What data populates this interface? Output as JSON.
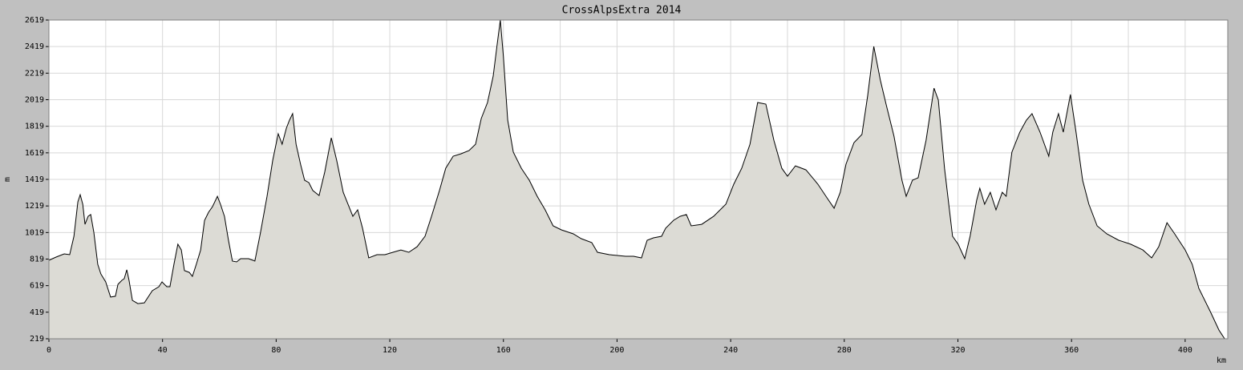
{
  "chart_data": {
    "type": "area",
    "title": "CrossAlpsExtra 2014",
    "y_label": "m",
    "x_label": "km",
    "fill_color": "#dcdbd5",
    "line_color": "#000000",
    "grid": true,
    "xlim": [
      0,
      415
    ],
    "xticks": [
      0,
      40,
      80,
      120,
      160,
      200,
      240,
      280,
      320,
      360,
      400
    ],
    "ylim": [
      219,
      2619
    ],
    "yticks": [
      219,
      419,
      619,
      819,
      1019,
      1219,
      1419,
      1619,
      1819,
      2019,
      2219,
      2419,
      2619
    ],
    "x": [
      0,
      2.5,
      5.4,
      7.3,
      8.8,
      10.2,
      11,
      11.9,
      12.7,
      13.8,
      14.7,
      15.8,
      17.2,
      18.3,
      20,
      21.7,
      23.4,
      24.3,
      25.7,
      26.5,
      27.4,
      28.2,
      29.4,
      31.3,
      33.6,
      36.4,
      38.7,
      39.8,
      41.5,
      42.6,
      44,
      45.4,
      46.6,
      47.7,
      49.4,
      50.5,
      51.9,
      53.4,
      54.8,
      56.2,
      57.6,
      59.3,
      60.4,
      61.8,
      63.2,
      64.6,
      66.1,
      67.5,
      70.3,
      72.5,
      74.5,
      76.8,
      78.8,
      80.7,
      82.1,
      83.6,
      84.7,
      85.8,
      87,
      88.6,
      90,
      91.5,
      92.9,
      95.1,
      97.1,
      99.4,
      101.3,
      103.6,
      107,
      108.7,
      110.4,
      112.6,
      115.5,
      118.3,
      121.1,
      123.9,
      126.7,
      129.6,
      132.4,
      134.7,
      137.5,
      139.7,
      142.3,
      145.1,
      147.9,
      150.2,
      152.2,
      154.4,
      156.4,
      157.8,
      158.9,
      160,
      161.5,
      163.5,
      166.3,
      169.1,
      171.9,
      174.7,
      177.5,
      180.4,
      184.6,
      187.4,
      191.1,
      193.1,
      197.3,
      203,
      205.8,
      208.6,
      210.6,
      212.8,
      215.7,
      217.1,
      219.9,
      222.2,
      224.4,
      226.1,
      229.8,
      234,
      238.3,
      241.1,
      243.9,
      246.8,
      249.5,
      252.4,
      255.2,
      258,
      260,
      262.8,
      266.5,
      270.7,
      274.1,
      276.4,
      278.6,
      280.6,
      283.4,
      286.2,
      288.2,
      290.4,
      292.7,
      294.7,
      297.5,
      300.3,
      301.8,
      304,
      306,
      308.8,
      311.6,
      313.1,
      315.3,
      318.1,
      320.1,
      322.4,
      324.3,
      326.6,
      327.7,
      329.4,
      331.4,
      333.4,
      335.6,
      337,
      339,
      341.8,
      344.1,
      346.1,
      348.9,
      352,
      353.4,
      355.4,
      357.1,
      359.6,
      361.6,
      363.9,
      366.1,
      369,
      372.4,
      376.6,
      380.8,
      385.1,
      388.2,
      390.7,
      393.6,
      396.3,
      400,
      402.5,
      404.8,
      409,
      411.9,
      413.9
    ],
    "values": [
      810,
      834,
      858,
      852,
      991,
      1250,
      1304,
      1232,
      1081,
      1141,
      1154,
      1021,
      780,
      707,
      647,
      533,
      539,
      629,
      659,
      671,
      738,
      659,
      508,
      484,
      490,
      581,
      611,
      647,
      611,
      611,
      780,
      931,
      888,
      732,
      719,
      689,
      780,
      888,
      1111,
      1172,
      1214,
      1292,
      1232,
      1141,
      961,
      804,
      798,
      822,
      822,
      804,
      1021,
      1292,
      1564,
      1763,
      1684,
      1805,
      1865,
      1914,
      1684,
      1533,
      1413,
      1395,
      1335,
      1298,
      1473,
      1732,
      1564,
      1322,
      1141,
      1190,
      1051,
      828,
      852,
      852,
      870,
      888,
      870,
      912,
      991,
      1141,
      1335,
      1503,
      1594,
      1612,
      1636,
      1684,
      1877,
      1998,
      2197,
      2438,
      2619,
      2347,
      1865,
      1624,
      1503,
      1413,
      1292,
      1190,
      1069,
      1039,
      1009,
      973,
      943,
      870,
      852,
      840,
      840,
      828,
      961,
      979,
      991,
      1051,
      1111,
      1141,
      1154,
      1069,
      1081,
      1141,
      1232,
      1383,
      1503,
      1684,
      1998,
      1986,
      1714,
      1503,
      1443,
      1521,
      1491,
      1383,
      1274,
      1202,
      1322,
      1533,
      1696,
      1757,
      2046,
      2420,
      2166,
      1986,
      1744,
      1413,
      1292,
      1413,
      1431,
      1714,
      2106,
      2016,
      1503,
      991,
      931,
      822,
      991,
      1262,
      1352,
      1232,
      1322,
      1190,
      1322,
      1292,
      1624,
      1775,
      1865,
      1914,
      1775,
      1594,
      1775,
      1914,
      1775,
      2058,
      1775,
      1413,
      1232,
      1069,
      1009,
      961,
      931,
      888,
      828,
      912,
      1093,
      1009,
      888,
      780,
      599,
      418,
      285,
      219
    ]
  }
}
